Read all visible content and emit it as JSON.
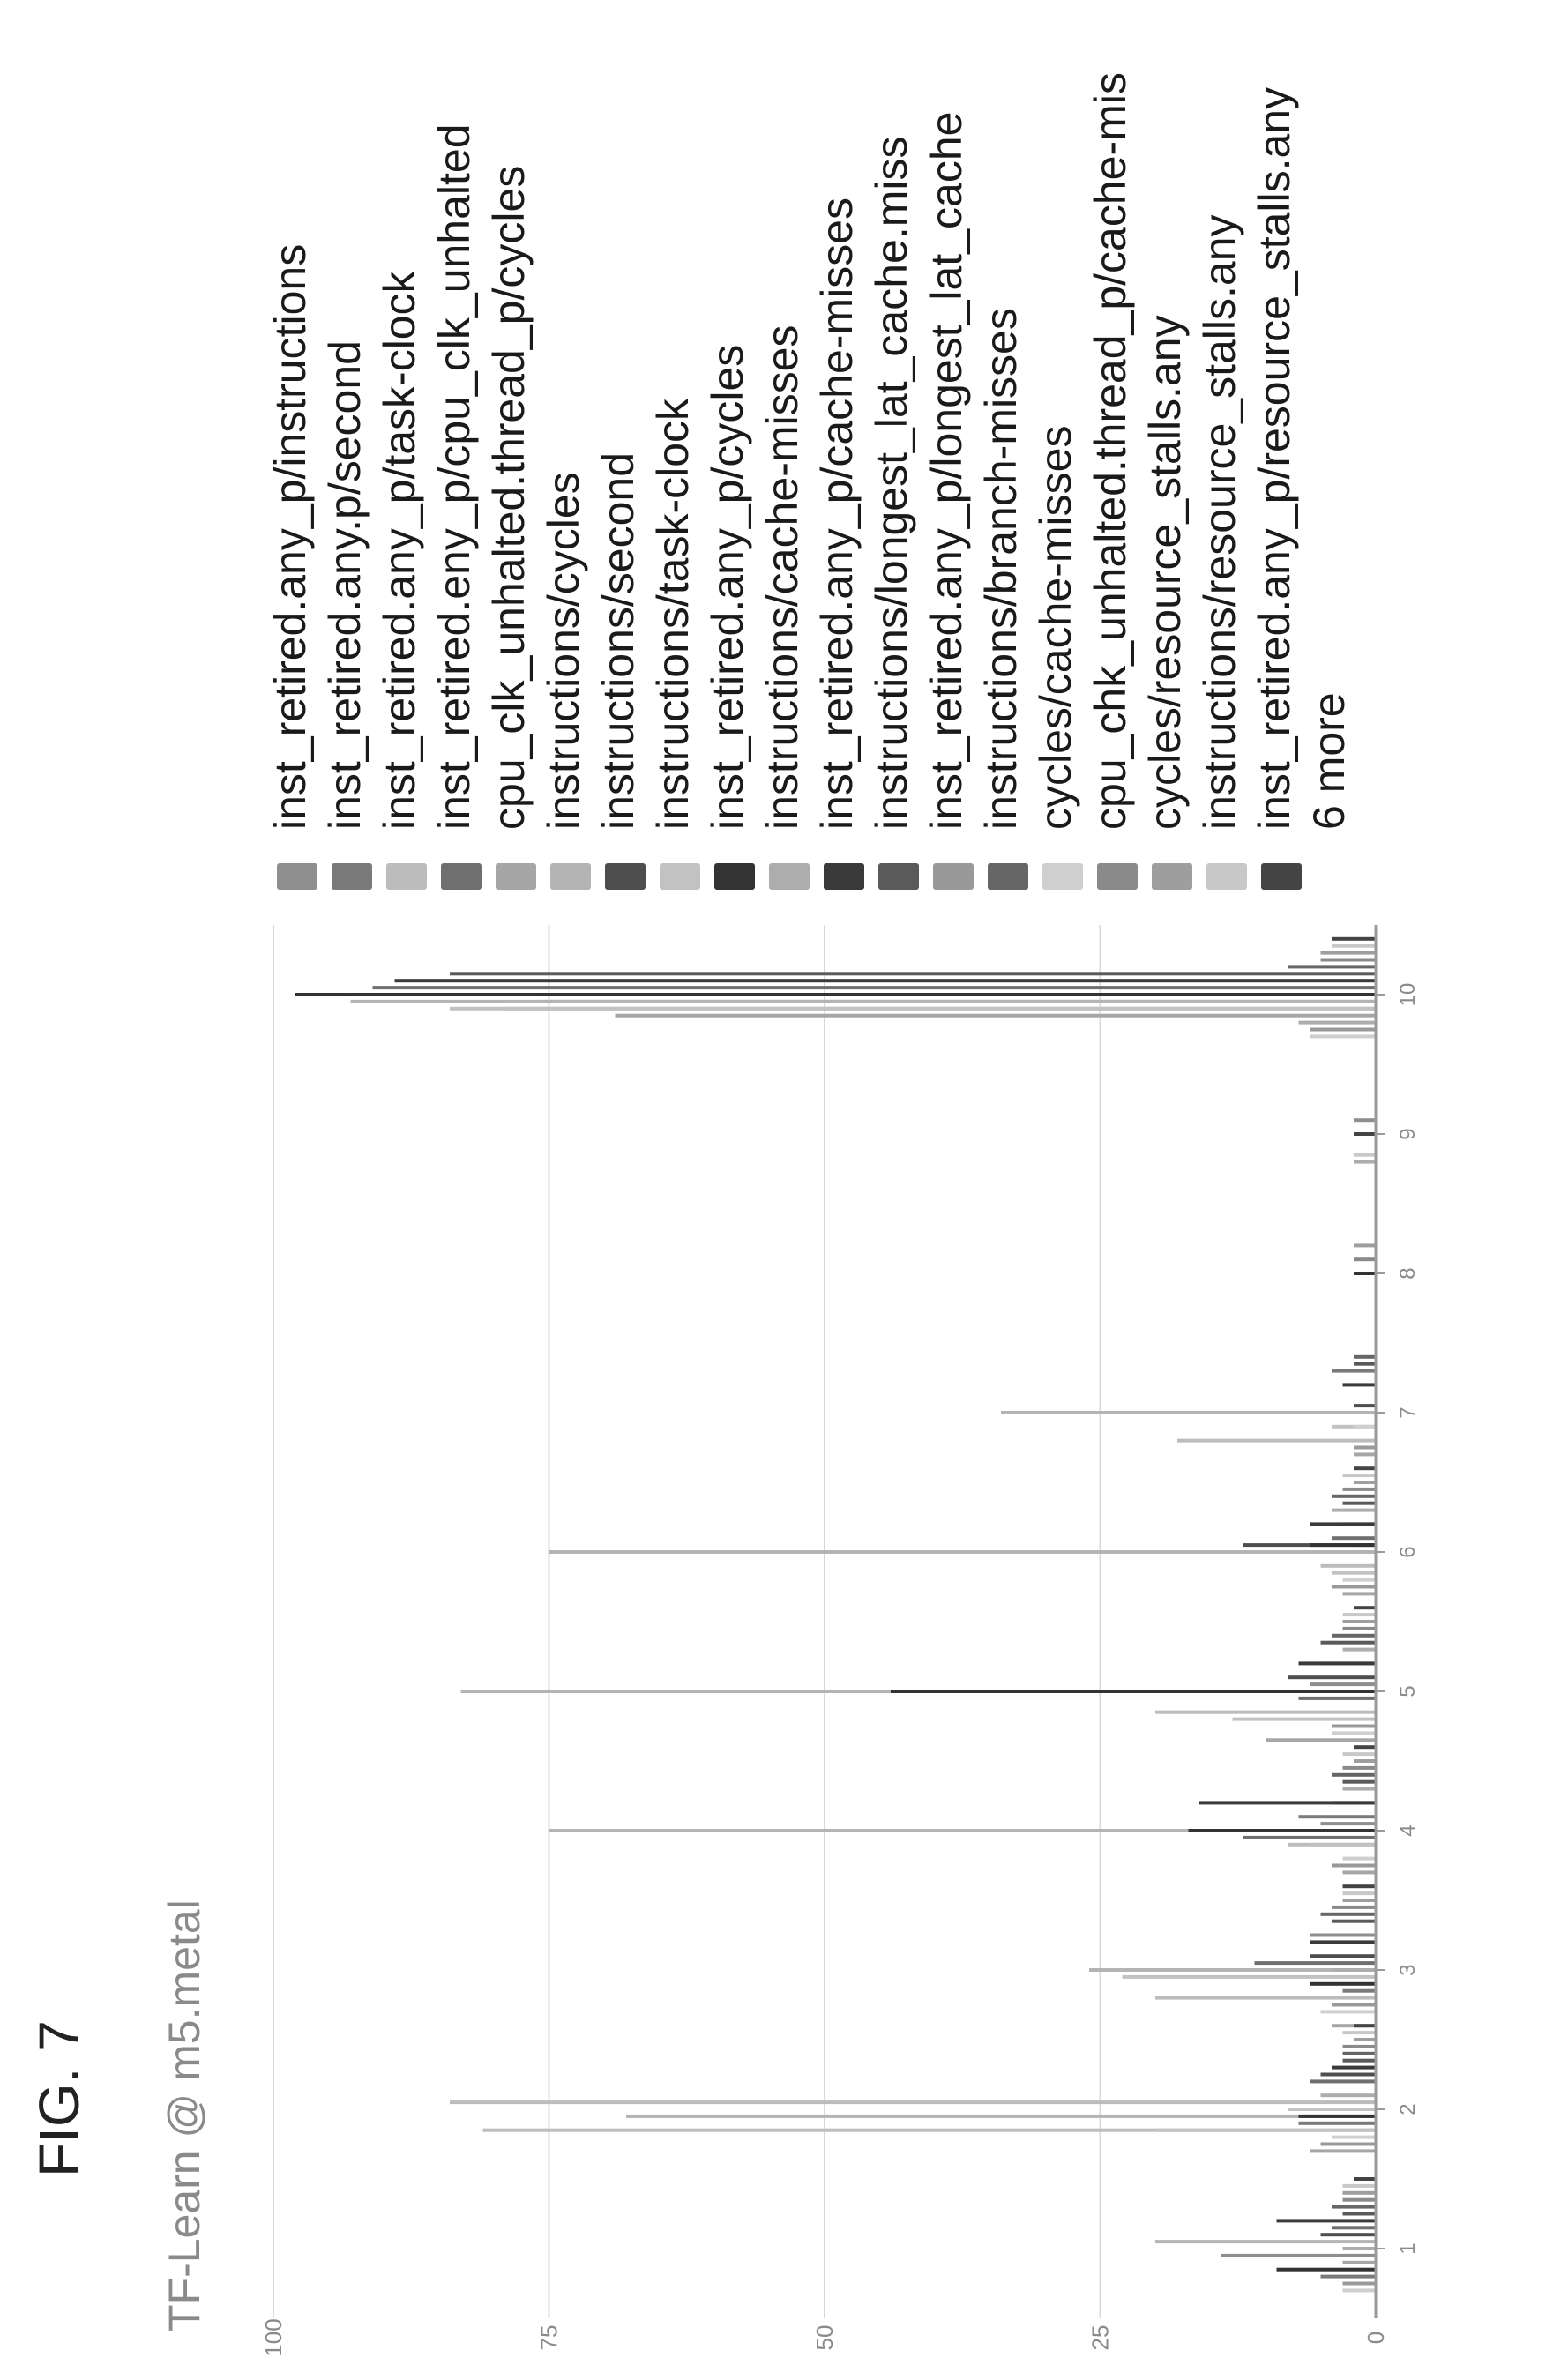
{
  "figure_label": "FIG. 7",
  "chart_data": {
    "type": "bar",
    "title": "TF-Learn @ m5.metal",
    "xlabel": "",
    "ylabel": "",
    "ylim": [
      0,
      100
    ],
    "xlim": [
      0.5,
      10.5
    ],
    "x_ticks": [
      "1",
      "2",
      "3",
      "4",
      "5",
      "6",
      "7",
      "8",
      "9",
      "10"
    ],
    "y_ticks": [
      "0",
      "25",
      "50",
      "75",
      "100"
    ],
    "grid": true,
    "legend_position": "right",
    "legend": [
      {
        "name": "inst_retired.any_p/instructions",
        "color": "#8e8e8e"
      },
      {
        "name": "inst_retired.any.p/second",
        "color": "#7a7a7a"
      },
      {
        "name": "inst_retired.any_p/task-clock",
        "color": "#bcbcbc"
      },
      {
        "name": "inst_retired.eny_p/cpu_clk_unhalted",
        "color": "#6f6f6f"
      },
      {
        "name": "cpu_clk_unhalted.thread_p/cycles",
        "color": "#a6a6a6"
      },
      {
        "name": "instructions/cycles",
        "color": "#b4b4b4"
      },
      {
        "name": "instructions/second",
        "color": "#4e4e4e"
      },
      {
        "name": "instructions/task-clock",
        "color": "#c2c2c2"
      },
      {
        "name": "inst_retired.any_p/cycles",
        "color": "#333333"
      },
      {
        "name": "instructions/cache-misses",
        "color": "#adadad"
      },
      {
        "name": "inst_retired.any_p/cache-misses",
        "color": "#3a3a3a"
      },
      {
        "name": "instructions/longest_lat_cache.miss",
        "color": "#5a5a5a"
      },
      {
        "name": "inst_retired.any_p/longest_lat_cache",
        "color": "#999999"
      },
      {
        "name": "instructions/branch-misses",
        "color": "#666666"
      },
      {
        "name": "cycles/cache-misses",
        "color": "#cfcfcf"
      },
      {
        "name": "cpu_chk_unhalted.thread_p/cache-mis",
        "color": "#8a8a8a"
      },
      {
        "name": "cycles/resource_stalls.any",
        "color": "#9e9e9e"
      },
      {
        "name": "instructions/resource_stalls.any",
        "color": "#c8c8c8"
      },
      {
        "name": "inst_retired.any_p/resource_stalls.any",
        "color": "#444444"
      }
    ],
    "legend_more": "6 more",
    "series": [
      {
        "name": "inst_retired.any_p/instructions",
        "x": [
          0.95,
          2.0,
          3.25,
          4.05,
          5.05,
          6.05,
          9.1,
          9.95
        ],
        "y": [
          14,
          4,
          6,
          5,
          6,
          2,
          2,
          76
        ]
      },
      {
        "name": "inst_retired.any.p/second",
        "x": [
          0.8,
          1.9,
          2.85,
          4.1,
          5.2,
          6.2,
          7.3,
          10.0
        ],
        "y": [
          5,
          7,
          3,
          7,
          5,
          3,
          4,
          92
        ]
      },
      {
        "name": "inst_retired.any_p/task-clock",
        "x": [
          1.85,
          2.05,
          2.8,
          3.9,
          4.85,
          5.9,
          6.8,
          9.9
        ],
        "y": [
          81,
          84,
          20,
          8,
          20,
          5,
          18,
          79
        ]
      },
      {
        "name": "inst_retired.eny_p/cpu_clk_unhalted",
        "x": [
          1.15,
          2.2,
          3.05,
          3.95,
          4.95,
          6.1,
          7.0,
          10.05
        ],
        "y": [
          4,
          6,
          11,
          12,
          7,
          4,
          3,
          91
        ]
      },
      {
        "name": "cpu_clk_unhalted.thread_p/cycles",
        "x": [
          0.9,
          1.7,
          2.6,
          3.7,
          4.65,
          5.7,
          6.7,
          9.85
        ],
        "y": [
          3,
          6,
          4,
          3,
          10,
          3,
          2,
          69
        ]
      },
      {
        "name": "instructions/cycles",
        "x": [
          1.05,
          1.95,
          3.0,
          4.0,
          5.0,
          6.0,
          7.0,
          9.95
        ],
        "y": [
          20,
          68,
          26,
          75,
          83,
          75,
          34,
          93
        ]
      },
      {
        "name": "instructions/second",
        "x": [
          1.1,
          2.25,
          3.1,
          4.2,
          5.1,
          6.05,
          7.05,
          10.0
        ],
        "y": [
          5,
          5,
          6,
          4,
          8,
          12,
          2,
          96
        ]
      },
      {
        "name": "instructions/task-clock",
        "x": [
          1.85,
          2.0,
          2.95,
          3.9,
          4.8,
          5.85,
          6.9,
          9.9
        ],
        "y": [
          20,
          8,
          23,
          6,
          13,
          4,
          4,
          84
        ]
      },
      {
        "name": "inst_retired.any_p/cycles",
        "x": [
          0.85,
          1.95,
          2.9,
          4.0,
          5.0,
          6.05,
          8.0,
          10.0
        ],
        "y": [
          9,
          7,
          6,
          17,
          44,
          6,
          2,
          98
        ]
      },
      {
        "name": "instructions/cache-misses",
        "x": [
          1.0,
          2.1,
          3.0,
          4.3,
          5.3,
          6.3,
          8.8,
          9.8
        ],
        "y": [
          3,
          5,
          4,
          3,
          3,
          4,
          2,
          7
        ]
      },
      {
        "name": "inst_retired.any_p/cache-misses",
        "x": [
          1.2,
          2.3,
          3.2,
          4.2,
          5.2,
          6.2,
          7.2,
          10.1
        ],
        "y": [
          9,
          4,
          6,
          16,
          7,
          6,
          3,
          89
        ]
      },
      {
        "name": "instructions/longest_lat_cache.miss",
        "x": [
          1.25,
          2.35,
          3.35,
          4.35,
          5.35,
          6.35,
          7.35,
          10.15
        ],
        "y": [
          3,
          3,
          4,
          3,
          5,
          3,
          2,
          84
        ]
      },
      {
        "name": "inst_retired.any_p/longest_lat_cache",
        "x": [
          0.75,
          1.75,
          2.75,
          3.75,
          4.75,
          5.75,
          6.75,
          9.75
        ],
        "y": [
          3,
          5,
          4,
          4,
          4,
          4,
          2,
          6
        ]
      },
      {
        "name": "instructions/branch-misses",
        "x": [
          1.3,
          2.4,
          3.4,
          4.4,
          5.4,
          6.4,
          7.4,
          10.2
        ],
        "y": [
          4,
          3,
          5,
          4,
          4,
          4,
          2,
          8
        ]
      },
      {
        "name": "cycles/cache-misses",
        "x": [
          0.7,
          1.8,
          2.7,
          3.8,
          4.7,
          5.8,
          6.9,
          9.7
        ],
        "y": [
          3,
          4,
          5,
          3,
          4,
          3,
          2,
          6
        ]
      },
      {
        "name": "cpu_chk_unhalted.thread_p/cache-mis",
        "x": [
          1.35,
          2.45,
          3.45,
          4.45,
          5.45,
          6.45,
          8.1,
          10.25
        ],
        "y": [
          3,
          3,
          4,
          3,
          3,
          3,
          2,
          5
        ]
      },
      {
        "name": "cycles/resource_stalls.any",
        "x": [
          1.4,
          2.5,
          3.5,
          4.5,
          5.5,
          6.5,
          8.2,
          10.3
        ],
        "y": [
          3,
          2,
          3,
          2,
          3,
          2,
          2,
          5
        ]
      },
      {
        "name": "instructions/resource_stalls.any",
        "x": [
          1.45,
          2.55,
          3.55,
          4.55,
          5.55,
          6.55,
          8.85,
          10.35
        ],
        "y": [
          3,
          3,
          3,
          3,
          3,
          3,
          2,
          4
        ]
      },
      {
        "name": "inst_retired.any_p/resource_stalls.any",
        "x": [
          1.5,
          2.6,
          3.6,
          4.6,
          5.6,
          6.6,
          9.0,
          10.4
        ],
        "y": [
          2,
          2,
          3,
          2,
          2,
          2,
          2,
          4
        ]
      }
    ]
  }
}
